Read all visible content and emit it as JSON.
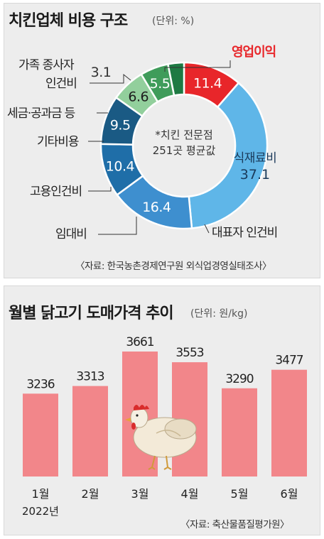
{
  "chart_data": [
    {
      "type": "pie",
      "title": "치킨업체  비용 구조",
      "unit": "(단위: %)",
      "center_note": [
        "*치킨 전문점",
        "251곳 평균값"
      ],
      "slices": [
        {
          "label": "영업이익",
          "value": 11.4,
          "color": "#e8262a",
          "highlight": true
        },
        {
          "label": "식재료비",
          "value": 37.1,
          "color": "#5fb6e8"
        },
        {
          "label": "대표자 인건비",
          "value": 16.4,
          "color": "#3e8fcf"
        },
        {
          "label": "임대비",
          "value": 10.4,
          "color": "#1f6ea8"
        },
        {
          "label": "고용인건비",
          "value": 9.5,
          "color": "#1a5a84"
        },
        {
          "label": "기타비용",
          "value": 6.6,
          "color": "#92cf9c"
        },
        {
          "label": "세금·공과금 등",
          "value": 5.5,
          "color": "#3f9c5a"
        },
        {
          "label": "가족 종사자 인건비",
          "value": 3.1,
          "color": "#1e7a43"
        }
      ],
      "source": "〈자료: 한국농촌경제연구원 외식업경영실태조사〉"
    },
    {
      "type": "bar",
      "title": "월별 닭고기 도매가격 추이",
      "unit": "(단위: 원/kg)",
      "categories": [
        "1월",
        "2월",
        "3월",
        "4월",
        "5월",
        "6월"
      ],
      "year_label": "2022년",
      "values": [
        3236,
        3313,
        3661,
        3553,
        3290,
        3477
      ],
      "bar_color": "#f2868a",
      "source": "〈자료: 축산물품질평가원〉"
    }
  ]
}
